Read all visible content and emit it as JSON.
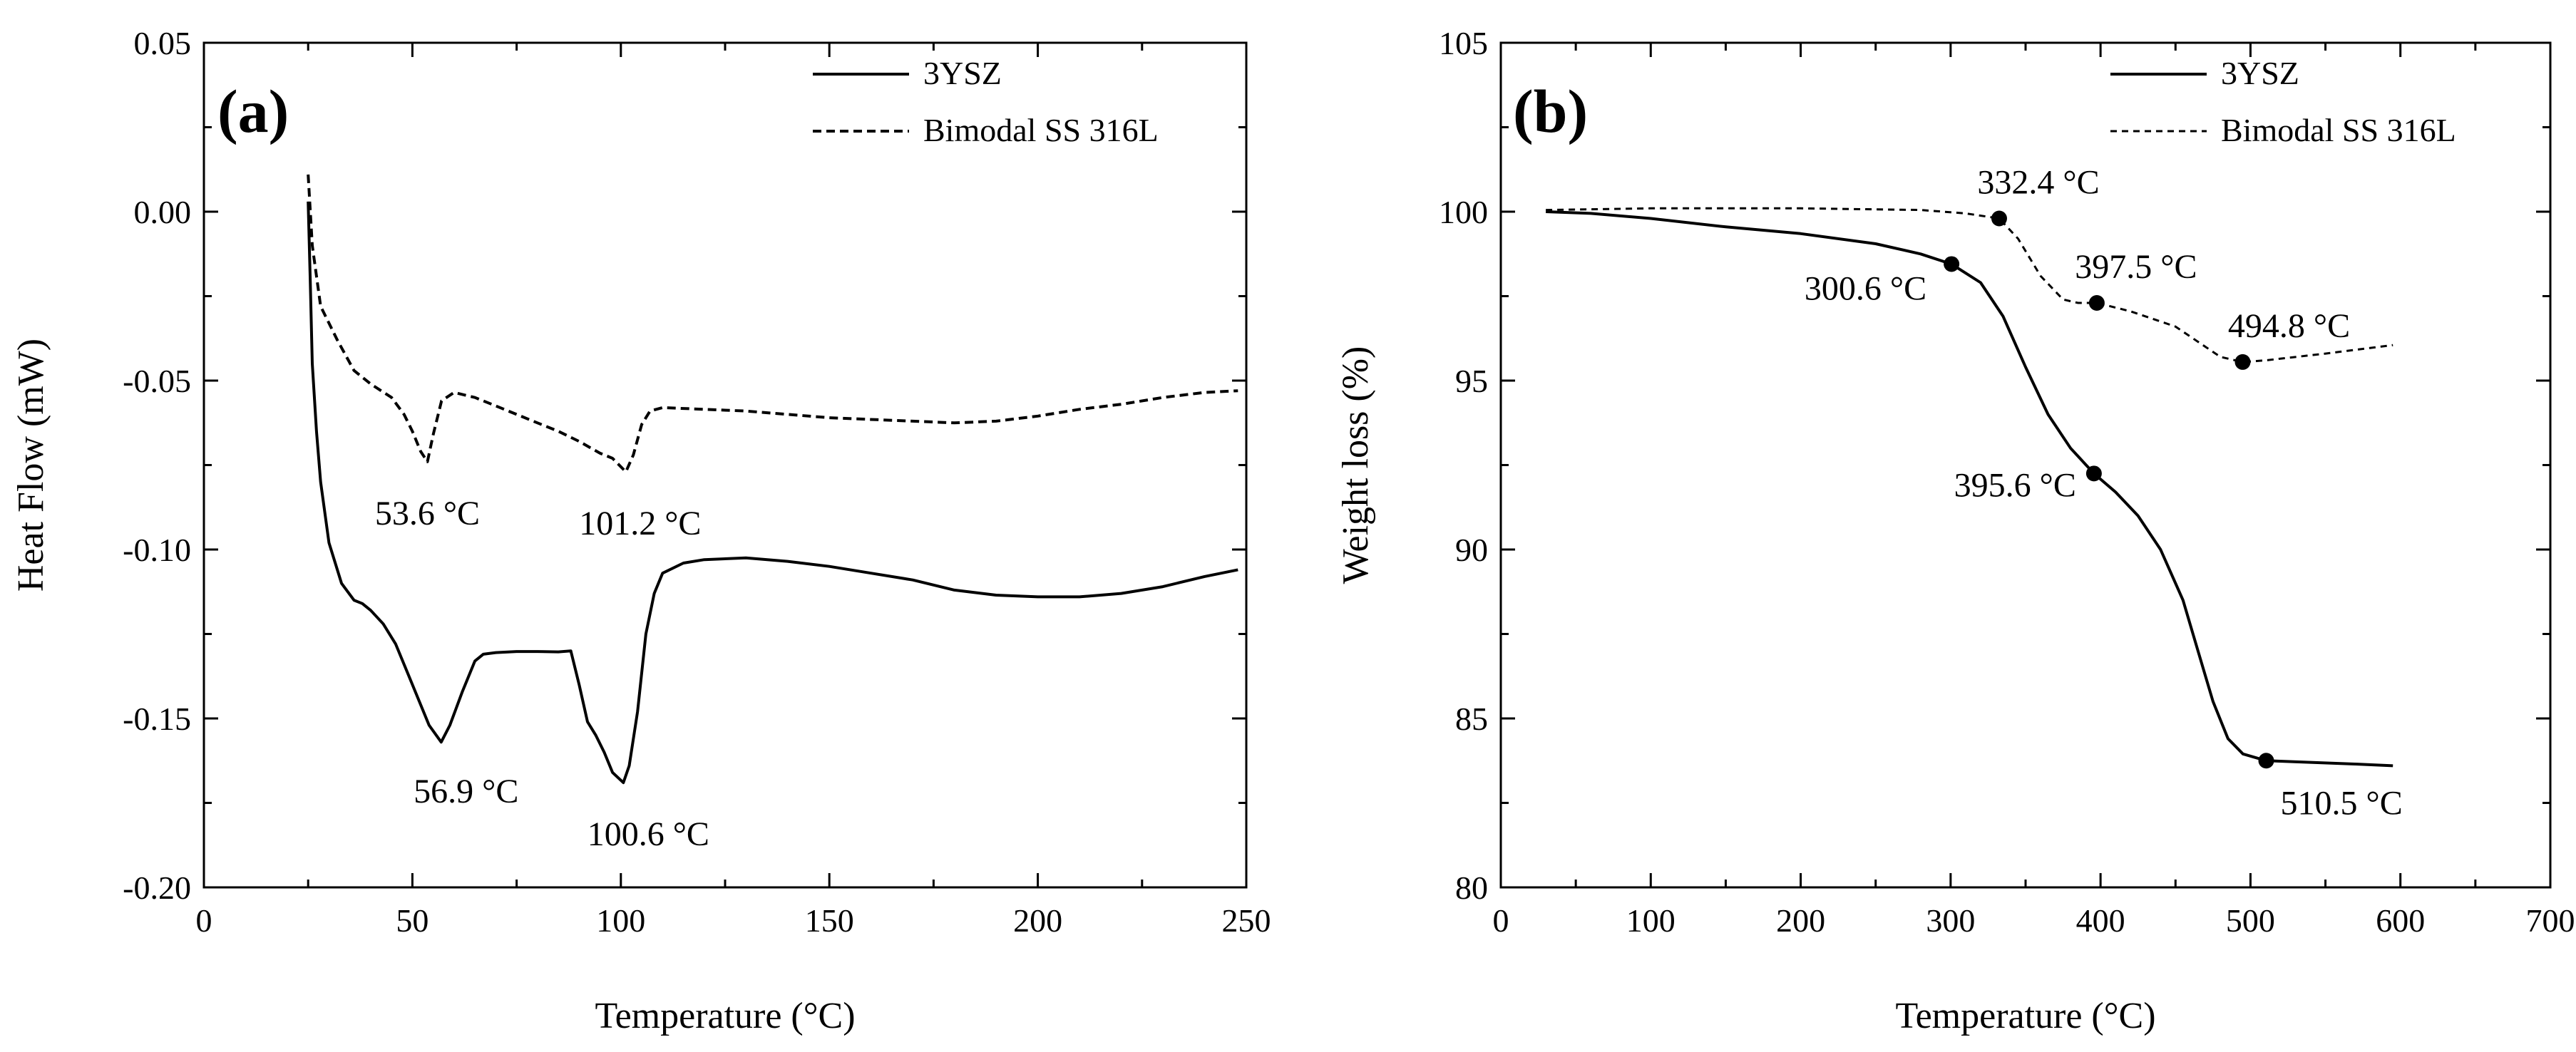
{
  "chart_data": [
    {
      "type": "line",
      "panel_label": "(a)",
      "title": "",
      "xlabel": "Temperature (°C)",
      "ylabel": "Heat Flow (mW)",
      "xlim": [
        0,
        250
      ],
      "ylim": [
        -0.2,
        0.05
      ],
      "xticks": [
        0,
        50,
        100,
        150,
        200,
        250
      ],
      "yticks": [
        -0.2,
        -0.15,
        -0.1,
        -0.05,
        0.0,
        0.05
      ],
      "xtick_labels": [
        "0",
        "50",
        "100",
        "150",
        "200",
        "250"
      ],
      "ytick_labels": [
        "-0.20",
        "-0.15",
        "-0.10",
        "-0.05",
        "0.00",
        "0.05"
      ],
      "legend_position": "top-right",
      "series": [
        {
          "name": "3YSZ",
          "style": "solid",
          "x": [
            25,
            25.5,
            26,
            27,
            28,
            30,
            33,
            36,
            38,
            40,
            43,
            46,
            49,
            52,
            54,
            56.9,
            59,
            62,
            65,
            67,
            70,
            75,
            80,
            85,
            88,
            90,
            92,
            94,
            96,
            98,
            100.6,
            102,
            104,
            106,
            108,
            110,
            115,
            120,
            130,
            140,
            150,
            160,
            170,
            180,
            190,
            200,
            210,
            220,
            230,
            240,
            248
          ],
          "y": [
            0.003,
            -0.02,
            -0.045,
            -0.065,
            -0.08,
            -0.098,
            -0.11,
            -0.115,
            -0.116,
            -0.118,
            -0.122,
            -0.128,
            -0.137,
            -0.146,
            -0.152,
            -0.157,
            -0.152,
            -0.142,
            -0.133,
            -0.131,
            -0.1305,
            -0.1302,
            -0.1302,
            -0.1303,
            -0.13,
            -0.14,
            -0.151,
            -0.155,
            -0.16,
            -0.166,
            -0.169,
            -0.164,
            -0.148,
            -0.125,
            -0.113,
            -0.107,
            -0.104,
            -0.103,
            -0.1025,
            -0.1035,
            -0.105,
            -0.107,
            -0.109,
            -0.112,
            -0.1135,
            -0.114,
            -0.114,
            -0.113,
            -0.111,
            -0.108,
            -0.106
          ]
        },
        {
          "name": "Bimodal SS 316L",
          "style": "dashed",
          "x": [
            25,
            26,
            28,
            32,
            36,
            40,
            45,
            48,
            50,
            52,
            53.6,
            55,
            57,
            60,
            65,
            70,
            75,
            80,
            85,
            90,
            95,
            98,
            101.2,
            103,
            105,
            107,
            110,
            120,
            130,
            150,
            170,
            180,
            190,
            200,
            210,
            220,
            230,
            240,
            248
          ],
          "y": [
            0.011,
            -0.01,
            -0.028,
            -0.038,
            -0.047,
            -0.051,
            -0.055,
            -0.06,
            -0.065,
            -0.071,
            -0.074,
            -0.066,
            -0.056,
            -0.0535,
            -0.055,
            -0.0575,
            -0.06,
            -0.0625,
            -0.065,
            -0.068,
            -0.0715,
            -0.073,
            -0.077,
            -0.072,
            -0.063,
            -0.059,
            -0.058,
            -0.0585,
            -0.059,
            -0.061,
            -0.062,
            -0.0625,
            -0.062,
            -0.0605,
            -0.0585,
            -0.057,
            -0.055,
            -0.0535,
            -0.053
          ]
        }
      ],
      "annotations": [
        {
          "text": "53.6 °C",
          "x": 53.6,
          "y": -0.074
        },
        {
          "text": "101.2 °C",
          "x": 101.2,
          "y": -0.077
        },
        {
          "text": "56.9 °C",
          "x": 56.9,
          "y": -0.157
        },
        {
          "text": "100.6 °C",
          "x": 100.6,
          "y": -0.169
        }
      ]
    },
    {
      "type": "line",
      "panel_label": "(b)",
      "title": "",
      "xlabel": "Temperature (°C)",
      "ylabel": "Weight loss (%)",
      "xlim": [
        0,
        700
      ],
      "ylim": [
        80,
        105
      ],
      "xticks": [
        0,
        100,
        200,
        300,
        400,
        500,
        600,
        700
      ],
      "yticks": [
        80,
        85,
        90,
        95,
        100,
        105
      ],
      "xtick_labels": [
        "0",
        "100",
        "200",
        "300",
        "400",
        "500",
        "600",
        "700"
      ],
      "ytick_labels": [
        "80",
        "85",
        "90",
        "95",
        "100",
        "105"
      ],
      "legend_position": "top-right",
      "series": [
        {
          "name": "3YSZ",
          "style": "solid",
          "x": [
            30,
            60,
            100,
            150,
            200,
            250,
            280,
            300.6,
            320,
            335,
            350,
            365,
            380,
            395.6,
            410,
            425,
            440,
            455,
            465,
            475,
            485,
            495,
            510.5,
            540,
            570,
            595
          ],
          "y": [
            100.0,
            99.95,
            99.8,
            99.55,
            99.35,
            99.05,
            98.75,
            98.45,
            97.9,
            96.9,
            95.4,
            94.0,
            93.0,
            92.25,
            91.7,
            91.0,
            90.0,
            88.5,
            87.0,
            85.5,
            84.4,
            83.95,
            83.75,
            83.7,
            83.65,
            83.6
          ]
        },
        {
          "name": "Bimodal SS 316L",
          "style": "dashed",
          "x": [
            30,
            100,
            200,
            280,
            310,
            332.4,
            345,
            360,
            375,
            385,
            397.5,
            420,
            450,
            470,
            480,
            494.8,
            510,
            550,
            595
          ],
          "y": [
            100.05,
            100.1,
            100.1,
            100.05,
            99.95,
            99.8,
            99.2,
            98.1,
            97.4,
            97.3,
            97.3,
            97.05,
            96.6,
            96.0,
            95.7,
            95.55,
            95.6,
            95.8,
            96.05
          ]
        }
      ],
      "markers": [
        {
          "series": "3YSZ",
          "x": 300.6,
          "y": 98.45
        },
        {
          "series": "3YSZ",
          "x": 395.6,
          "y": 92.25
        },
        {
          "series": "3YSZ",
          "x": 510.5,
          "y": 83.75
        },
        {
          "series": "Bimodal SS 316L",
          "x": 332.4,
          "y": 99.8
        },
        {
          "series": "Bimodal SS 316L",
          "x": 397.5,
          "y": 97.3
        },
        {
          "series": "Bimodal SS 316L",
          "x": 494.8,
          "y": 95.55
        }
      ],
      "annotations": [
        {
          "text": "332.4 °C",
          "x": 332.4,
          "y": 99.8
        },
        {
          "text": "300.6 °C",
          "x": 300.6,
          "y": 98.45
        },
        {
          "text": "397.5 °C",
          "x": 397.5,
          "y": 97.3
        },
        {
          "text": "494.8 °C",
          "x": 494.8,
          "y": 95.55
        },
        {
          "text": "395.6 °C",
          "x": 395.6,
          "y": 92.25
        },
        {
          "text": "510.5 °C",
          "x": 510.5,
          "y": 83.75
        }
      ]
    }
  ]
}
